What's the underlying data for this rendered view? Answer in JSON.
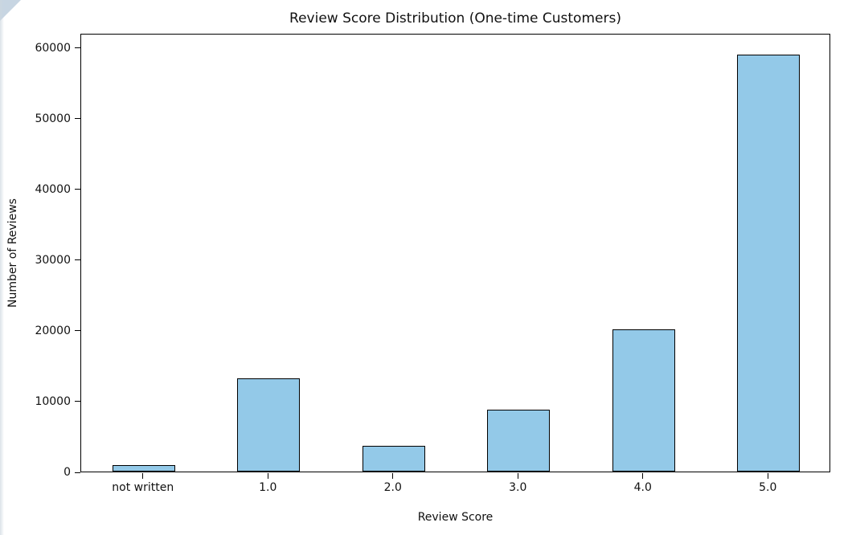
{
  "chart_data": {
    "type": "bar",
    "title": "Review Score Distribution (One-time Customers)",
    "xlabel": "Review Score",
    "ylabel": "Number of Reviews",
    "categories": [
      "not written",
      "1.0",
      "2.0",
      "3.0",
      "4.0",
      "5.0"
    ],
    "values": [
      900,
      13200,
      3600,
      8800,
      20100,
      58900
    ],
    "ylim": [
      0,
      62000
    ],
    "yticks": [
      0,
      10000,
      20000,
      30000,
      40000,
      50000,
      60000
    ],
    "bar_color": "#93c9e8",
    "bar_edge_color": "#000000",
    "grid": false,
    "legend_position": "none",
    "bar_width_ratio": 0.5
  }
}
